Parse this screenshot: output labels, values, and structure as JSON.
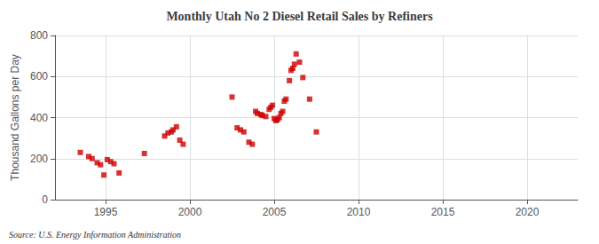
{
  "chart_data": {
    "type": "scatter",
    "title": "Monthly Utah No 2 Diesel Retail Sales by Refiners",
    "ylabel": "Thousand Gallons per Day",
    "source": "Source: U.S. Energy Information Administration",
    "color": "#CC0000",
    "marker": "square",
    "grid": true,
    "xlim": [
      1992,
      2023
    ],
    "ylim": [
      0,
      800
    ],
    "xticks": [
      1995,
      2000,
      2005,
      2010,
      2015,
      2020
    ],
    "yticks": [
      0,
      200,
      400,
      600,
      800
    ],
    "x": [
      1993.5,
      1994.0,
      1994.2,
      1994.5,
      1994.7,
      1994.9,
      1995.1,
      1995.3,
      1995.5,
      1995.8,
      1997.3,
      1998.5,
      1998.7,
      1998.9,
      1999.0,
      1999.2,
      1999.4,
      1999.6,
      2002.5,
      2002.8,
      2003.0,
      2003.2,
      2003.5,
      2003.7,
      2003.9,
      2004.0,
      2004.2,
      2004.3,
      2004.5,
      2004.7,
      2004.8,
      2004.9,
      2005.0,
      2005.1,
      2005.2,
      2005.3,
      2005.4,
      2005.5,
      2005.6,
      2005.7,
      2005.9,
      2006.0,
      2006.1,
      2006.2,
      2006.3,
      2006.5,
      2006.7,
      2007.1,
      2007.5
    ],
    "values": [
      230,
      210,
      200,
      180,
      170,
      120,
      195,
      185,
      175,
      130,
      225,
      310,
      325,
      330,
      340,
      355,
      290,
      270,
      500,
      350,
      340,
      330,
      280,
      270,
      430,
      420,
      415,
      410,
      405,
      440,
      450,
      460,
      395,
      385,
      390,
      400,
      420,
      430,
      480,
      490,
      580,
      630,
      640,
      660,
      710,
      670,
      595,
      490,
      330
    ]
  }
}
